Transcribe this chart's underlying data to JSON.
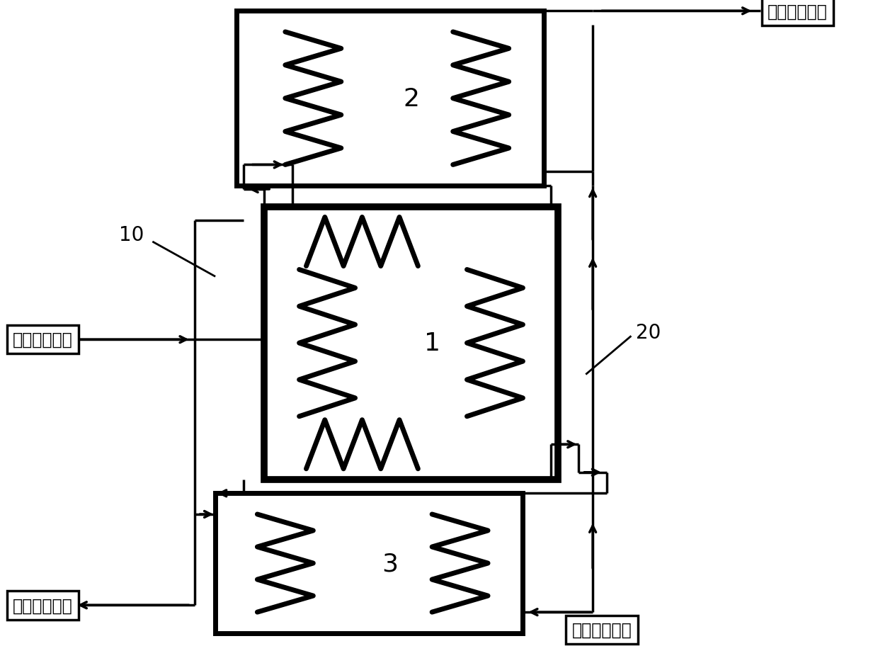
{
  "bg_color": "#ffffff",
  "lc": "#000000",
  "thick_lw": 5.0,
  "pipe_lw": 2.5,
  "label1": "1",
  "label2": "2",
  "label3": "3",
  "label10": "10",
  "label20": "20",
  "label_yrjsr": "二次网热水回",
  "label_yrjsj": "二次网热水进",
  "label_ycjsr": "一次网热水回",
  "label_ycjsj": "一次网热水进",
  "font_sz_num": 26,
  "font_sz_label": 17,
  "font_sz_annot": 20
}
